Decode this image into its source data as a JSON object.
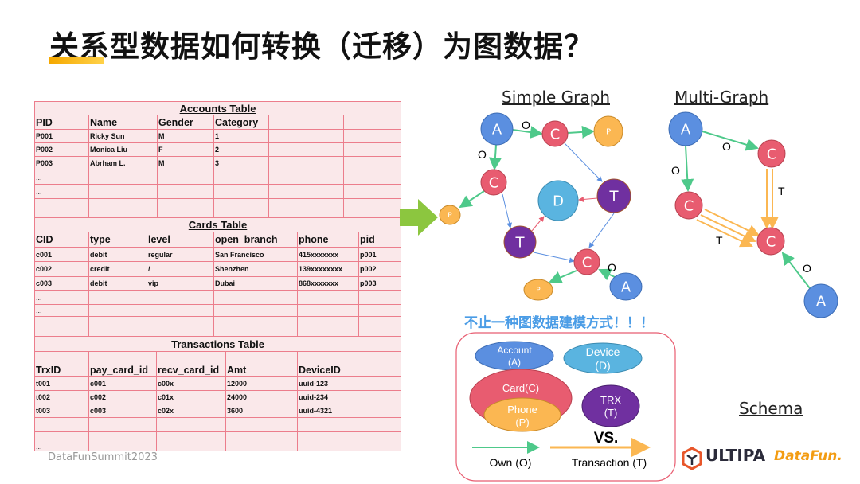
{
  "title": "关系型数据如何转换（迁移）为图数据？",
  "footer": "DataFunSummit2023",
  "accounts_table": {
    "title": "Accounts Table",
    "headers": [
      "PID",
      "Name",
      "Gender",
      "Category",
      "",
      ""
    ],
    "rows": [
      [
        "P001",
        "Ricky Sun",
        "M",
        "1",
        "",
        ""
      ],
      [
        "P002",
        "Monica Liu",
        "F",
        "2",
        "",
        ""
      ],
      [
        "P003",
        "Abrham L.",
        "M",
        "3",
        "",
        ""
      ],
      [
        "...",
        "",
        "",
        "",
        "",
        ""
      ],
      [
        " ...",
        "",
        "",
        "",
        "",
        ""
      ],
      [
        "",
        "",
        "",
        "",
        "",
        ""
      ]
    ]
  },
  "cards_table": {
    "title": "Cards Table",
    "headers": [
      "CID",
      "type",
      "level",
      "open_branch",
      "phone",
      "pid"
    ],
    "rows": [
      [
        "c001",
        "debit",
        "regular",
        "San Francisco",
        "415xxxxxxx",
        "p001"
      ],
      [
        "c002",
        "credit",
        "/",
        "Shenzhen",
        "139xxxxxxxx",
        "p002"
      ],
      [
        "c003",
        "debit",
        "vip",
        "Dubai",
        "868xxxxxxx",
        "p003"
      ],
      [
        "...",
        "",
        "",
        "",
        "",
        ""
      ],
      [
        " ...",
        "",
        "",
        "",
        "",
        ""
      ],
      [
        "",
        "",
        "",
        "",
        "",
        ""
      ]
    ]
  },
  "transactions_table": {
    "title": "Transactions Table",
    "headers": [
      "TrxID",
      "pay_card_id",
      "recv_card_id",
      "Amt",
      "DeviceID",
      ""
    ],
    "rows": [
      [
        "t001",
        "c001",
        "c00x",
        "12000",
        "uuid-123",
        ""
      ],
      [
        "t002",
        "c002",
        "c01x",
        "24000",
        "uuid-234",
        ""
      ],
      [
        "t003",
        "c003",
        "c02x",
        "3600",
        "uuid-4321",
        ""
      ],
      [
        "...",
        "",
        "",
        "",
        "",
        ""
      ],
      [
        "...",
        "",
        "",
        "",
        "",
        ""
      ]
    ]
  },
  "simple_graph": {
    "title": "Simple Graph",
    "nodes": [
      "A",
      "C",
      "P",
      "C",
      "P",
      "D",
      "T",
      "T",
      "C",
      "P",
      "A"
    ],
    "edge_labels": [
      "O",
      "O",
      "O"
    ]
  },
  "multi_graph": {
    "title": "Multi-Graph",
    "nodes": [
      "A",
      "C",
      "C",
      "C",
      "A"
    ],
    "edge_labels": [
      "O",
      "O",
      "T",
      "T",
      "O"
    ]
  },
  "note": "不止一种图数据建模方式！！！",
  "schema": {
    "title": "Schema",
    "account": [
      "Account",
      "(A)"
    ],
    "device": [
      "Device",
      "(D)"
    ],
    "card": "Card(C)",
    "phone": [
      "Phone",
      "(P)"
    ],
    "trx": [
      "TRX",
      "(T)"
    ],
    "vs": "VS.",
    "own": "Own (O)",
    "transaction": "Transaction (T)"
  },
  "logos": {
    "ultipa": "ULTIPA",
    "datafun": "DataFun."
  },
  "colors": {
    "account": "#5b8fe0",
    "card": "#e85c70",
    "phone": "#fbb752",
    "device": "#5ab4e0",
    "trx": "#7030a0",
    "own_edge": "#4ec98a",
    "trx_edge": "#fbb752",
    "table_border": "#ec7d8c",
    "table_fill": "#fae8ea",
    "note": "#4a9ce6"
  }
}
